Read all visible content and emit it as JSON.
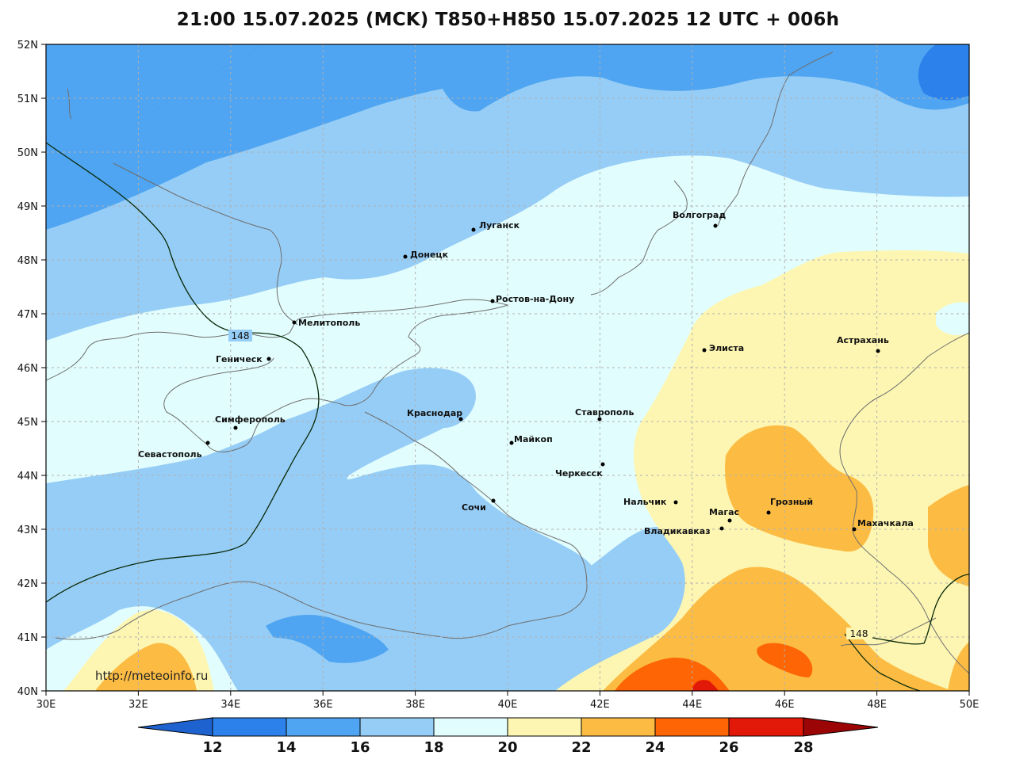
{
  "title": "21:00 15.07.2025 (MCK) T850+H850 15.07.2025 12 UTC + 006h",
  "watermark": "http://meteoinfo.ru",
  "lat_ticks": [
    "52N",
    "51N",
    "50N",
    "49N",
    "48N",
    "47N",
    "46N",
    "45N",
    "44N",
    "43N",
    "42N",
    "41N",
    "40N"
  ],
  "lon_ticks": [
    "30E",
    "32E",
    "34E",
    "36E",
    "38E",
    "40E",
    "42E",
    "44E",
    "46E",
    "48E",
    "50E"
  ],
  "isohypse_labels": [
    "148",
    "148"
  ],
  "cities": [
    {
      "name": "Волгоград"
    },
    {
      "name": "Луганск"
    },
    {
      "name": "Донецк"
    },
    {
      "name": "Ростов-на-Дону"
    },
    {
      "name": "Мелитополь"
    },
    {
      "name": "Геническ"
    },
    {
      "name": "Симферополь"
    },
    {
      "name": "Севастополь"
    },
    {
      "name": "Краснодар"
    },
    {
      "name": "Майкоп"
    },
    {
      "name": "Ставрополь"
    },
    {
      "name": "Элиста"
    },
    {
      "name": "Астрахань"
    },
    {
      "name": "Черкесск"
    },
    {
      "name": "Сочи"
    },
    {
      "name": "Нальчик"
    },
    {
      "name": "Магас"
    },
    {
      "name": "Грозный"
    },
    {
      "name": "Владикавказ"
    },
    {
      "name": "Махачкала"
    }
  ],
  "colorbar": {
    "labels": [
      "12",
      "14",
      "16",
      "18",
      "20",
      "22",
      "24",
      "26",
      "28"
    ],
    "colors": [
      "#1e62d0",
      "#2c82ea",
      "#4fa5f1",
      "#96cdf6",
      "#e2fdfd",
      "#fdf6b2",
      "#fcbc43",
      "#fd6505",
      "#e21908",
      "#9b0505"
    ]
  }
}
